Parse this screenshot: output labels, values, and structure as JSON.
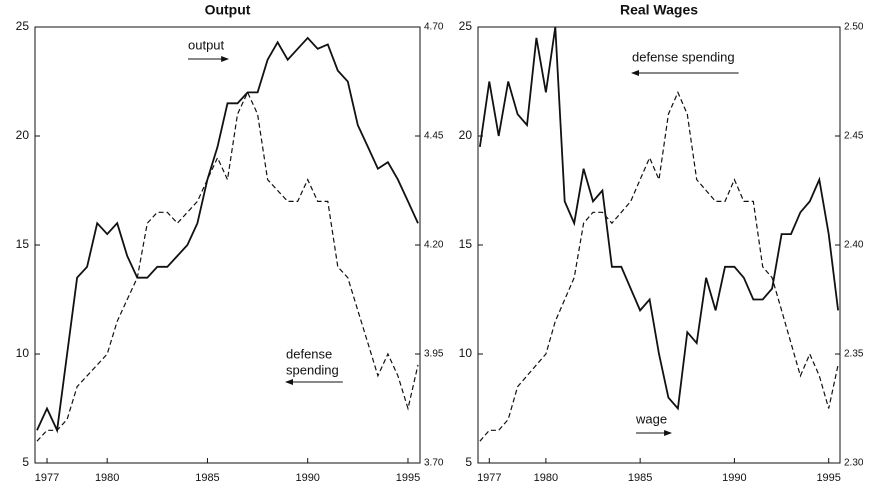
{
  "chart_data": [
    {
      "type": "line",
      "title": "Output",
      "x": [
        1976.5,
        1977,
        1977.5,
        1978,
        1978.5,
        1979,
        1979.5,
        1980,
        1980.5,
        1981,
        1981.5,
        1982,
        1982.5,
        1983,
        1983.5,
        1984,
        1984.5,
        1985,
        1985.5,
        1986,
        1986.5,
        1987,
        1987.5,
        1988,
        1988.5,
        1989,
        1989.5,
        1990,
        1990.5,
        1991,
        1991.5,
        1992,
        1992.5,
        1993,
        1993.5,
        1994,
        1994.5,
        1995,
        1995.5
      ],
      "series": [
        {
          "name": "output",
          "color": "#111111",
          "axis": "y2",
          "dash": false,
          "values": [
            3.775,
            3.825,
            3.775,
            3.95,
            4.125,
            4.15,
            4.25,
            4.225,
            4.25,
            4.175,
            4.125,
            4.125,
            4.15,
            4.15,
            4.175,
            4.2,
            4.25,
            4.35,
            4.425,
            4.525,
            4.525,
            4.55,
            4.55,
            4.625,
            4.665,
            4.625,
            4.65,
            4.675,
            4.65,
            4.66,
            4.6,
            4.575,
            4.475,
            4.425,
            4.375,
            4.39,
            4.35,
            4.3,
            4.25
          ]
        },
        {
          "name": "defense spending",
          "color": "#111111",
          "dash": true,
          "values": [
            6,
            6.5,
            6.5,
            7,
            8.5,
            9,
            9.5,
            10,
            11.5,
            12.5,
            13.5,
            16,
            16.5,
            16.5,
            16,
            16.5,
            17,
            18,
            19,
            18,
            21,
            22,
            21,
            18,
            17.5,
            17,
            17,
            18,
            17,
            17,
            14,
            13.5,
            12,
            10.5,
            9,
            10,
            9,
            7.5,
            9.5
          ]
        }
      ],
      "annotations": [
        "output",
        "defense",
        "spending"
      ],
      "xlim": [
        1976.4,
        1995.6
      ],
      "xticks": [
        1977,
        1980,
        1985,
        1990,
        1995
      ],
      "ylim": [
        5,
        25
      ],
      "yticks": [
        5,
        10,
        15,
        20,
        25
      ],
      "y2lim": [
        3.7,
        4.7
      ],
      "y2ticks": [
        {
          "value": 3.7,
          "label": "3.70"
        },
        {
          "value": 3.95,
          "label": "3.95"
        },
        {
          "value": 4.2,
          "label": "4.20"
        },
        {
          "value": 4.45,
          "label": "4.45"
        },
        {
          "value": 4.7,
          "label": "4.70"
        }
      ]
    },
    {
      "type": "line",
      "title": "Real Wages",
      "x": [
        1976.5,
        1977,
        1977.5,
        1978,
        1978.5,
        1979,
        1979.5,
        1980,
        1980.5,
        1981,
        1981.5,
        1982,
        1982.5,
        1983,
        1983.5,
        1984,
        1984.5,
        1985,
        1985.5,
        1986,
        1986.5,
        1987,
        1987.5,
        1988,
        1988.5,
        1989,
        1989.5,
        1990,
        1990.5,
        1991,
        1991.5,
        1992,
        1992.5,
        1993,
        1993.5,
        1994,
        1994.5,
        1995,
        1995.5
      ],
      "series": [
        {
          "name": "wage",
          "color": "#111111",
          "axis": "y2",
          "dash": false,
          "values": [
            2.445,
            2.475,
            2.45,
            2.475,
            2.46,
            2.455,
            2.495,
            2.47,
            2.5,
            2.42,
            2.41,
            2.435,
            2.42,
            2.425,
            2.39,
            2.39,
            2.38,
            2.37,
            2.375,
            2.35,
            2.33,
            2.325,
            2.36,
            2.355,
            2.385,
            2.37,
            2.39,
            2.39,
            2.385,
            2.375,
            2.375,
            2.38,
            2.405,
            2.405,
            2.415,
            2.42,
            2.43,
            2.405,
            2.37
          ]
        },
        {
          "name": "defense spending",
          "color": "#111111",
          "dash": true,
          "values": [
            6,
            6.5,
            6.5,
            7,
            8.5,
            9,
            9.5,
            10,
            11.5,
            12.5,
            13.5,
            16,
            16.5,
            16.5,
            16,
            16.5,
            17,
            18,
            19,
            18,
            21,
            22,
            21,
            18,
            17.5,
            17,
            17,
            18,
            17,
            17,
            14,
            13.5,
            12,
            10.5,
            9,
            10,
            9,
            7.5,
            9.5
          ]
        }
      ],
      "annotations": [
        "defense spending",
        "wage"
      ],
      "xlim": [
        1976.4,
        1995.6
      ],
      "xticks": [
        1977,
        1980,
        1985,
        1990,
        1995
      ],
      "ylim": [
        5,
        25
      ],
      "yticks": [
        5,
        10,
        15,
        20,
        25
      ],
      "y2lim": [
        2.3,
        2.5
      ],
      "y2ticks": [
        {
          "value": 2.3,
          "label": "2.30"
        },
        {
          "value": 2.35,
          "label": "2.35"
        },
        {
          "value": 2.4,
          "label": "2.40"
        },
        {
          "value": 2.45,
          "label": "2.45"
        },
        {
          "value": 2.5,
          "label": "2.50"
        }
      ]
    }
  ]
}
